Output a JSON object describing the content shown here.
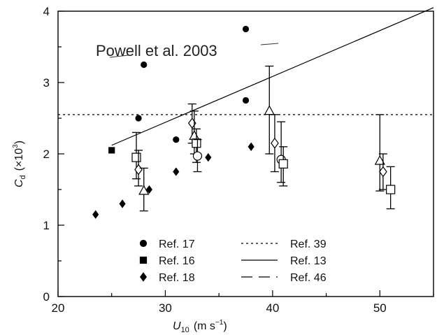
{
  "chart_data": {
    "type": "scatter",
    "title": "",
    "xlabel_main": "U",
    "xlabel_sub": "10",
    "xlabel_units": "(m s",
    "xlabel_units_sup": "−1",
    "xlabel_units_end": ")",
    "ylabel_main": "C",
    "ylabel_sub": "d",
    "ylabel_units": "(×10",
    "ylabel_units_sup": "3",
    "ylabel_units_end": ")",
    "xlim": [
      20,
      55
    ],
    "ylim": [
      0,
      4
    ],
    "xticks": [
      20,
      30,
      40,
      50
    ],
    "yticks": [
      0,
      1,
      2,
      3,
      4
    ],
    "grid": false,
    "legend_position": "bottom-left",
    "annotation": "Powell et al. 2003",
    "series": [
      {
        "name": "Ref. 17",
        "marker": "circle-filled",
        "points": [
          [
            27.5,
            2.5
          ],
          [
            28,
            3.25
          ],
          [
            31,
            2.2
          ],
          [
            37.5,
            3.75
          ],
          [
            37.5,
            2.75
          ]
        ]
      },
      {
        "name": "Ref. 16",
        "marker": "square-filled",
        "points": [
          [
            25,
            2.05
          ]
        ]
      },
      {
        "name": "Ref. 18",
        "marker": "diamond-filled",
        "points": [
          [
            23.5,
            1.15
          ],
          [
            26,
            1.3
          ],
          [
            28.5,
            1.5
          ],
          [
            31,
            1.75
          ],
          [
            34,
            1.95
          ],
          [
            38,
            2.1
          ]
        ]
      },
      {
        "name": "Ref. 39",
        "style": "dotted",
        "line": [
          [
            20,
            2.55
          ],
          [
            55,
            2.55
          ]
        ]
      },
      {
        "name": "Ref. 13",
        "style": "solid",
        "line": [
          [
            25,
            2.12
          ],
          [
            55,
            4.05
          ]
        ]
      },
      {
        "name": "Ref. 46",
        "style": "dashed",
        "points": [
          [
            27.3,
            1.95,
            1.65,
            2.3
          ],
          [
            27.5,
            1.78,
            1.55,
            2.05
          ],
          [
            28,
            1.48,
            1.2,
            1.8
          ],
          [
            32.5,
            2.43,
            2.15,
            2.7
          ],
          [
            32.7,
            2.25,
            2.0,
            2.6
          ],
          [
            32.9,
            2.15,
            1.88,
            2.35
          ],
          [
            33,
            1.97,
            1.75,
            2.2
          ],
          [
            39.7,
            2.6,
            2.0,
            3.23
          ],
          [
            40.2,
            2.15,
            1.75,
            2.55
          ],
          [
            40.8,
            1.92,
            1.6,
            2.45
          ],
          [
            41,
            1.86,
            1.55,
            2.1
          ],
          [
            50,
            1.9,
            1.48,
            2.55
          ],
          [
            50.3,
            1.75,
            1.5,
            2.0
          ],
          [
            51,
            1.5,
            1.23,
            1.82
          ]
        ],
        "markers": [
          "square-open",
          "diamond-open",
          "triangle-open",
          "diamond-open",
          "triangle-open",
          "square-open",
          "circle-open",
          "triangle-open",
          "diamond-open",
          "circle-open",
          "square-open",
          "triangle-open",
          "diamond-open",
          "square-open"
        ]
      }
    ]
  }
}
